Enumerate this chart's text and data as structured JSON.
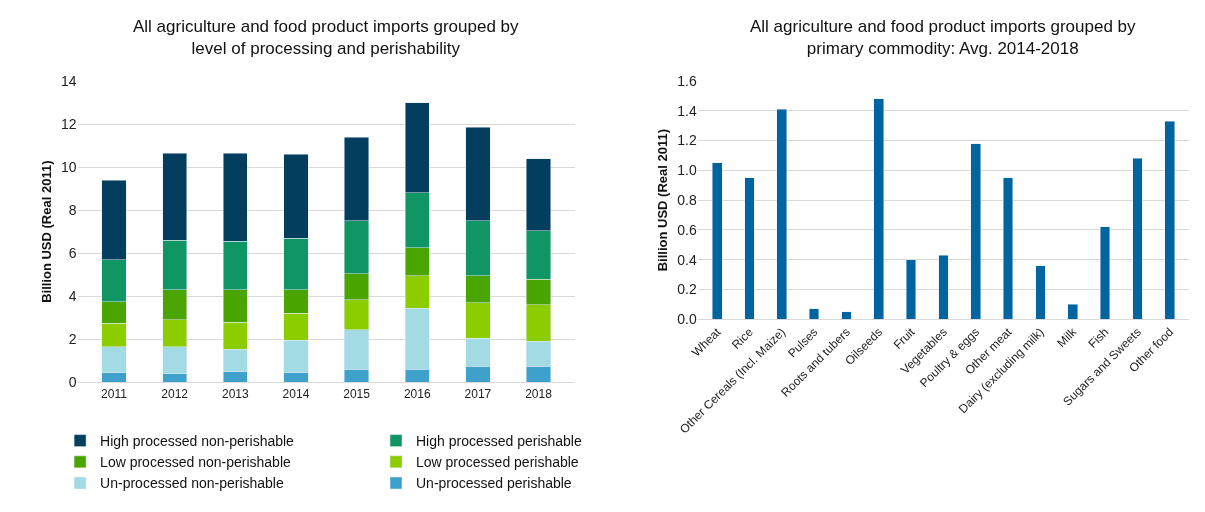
{
  "chart_data": [
    {
      "type": "bar",
      "title": "All agriculture and food product imports grouped by level of processing and perishability",
      "ylabel": "Billion USD (Real 2011)",
      "categories": [
        "2011",
        "2012",
        "2013",
        "2014",
        "2015",
        "2016",
        "2017",
        "2018"
      ],
      "stacked": true,
      "ylim": [
        0,
        14
      ],
      "yticks": [
        0,
        2,
        4,
        6,
        8,
        10,
        12,
        14
      ],
      "grid": "y",
      "legend": "bottom",
      "series": [
        {
          "name": "Un-processed perishable",
          "color": "#3ea1cc",
          "values": [
            0.45,
            0.4,
            0.5,
            0.45,
            0.6,
            0.6,
            0.75,
            0.75
          ]
        },
        {
          "name": "Un-processed non-perishable",
          "color": "#a2dbe3",
          "values": [
            1.2,
            1.25,
            1.05,
            1.5,
            1.85,
            2.85,
            1.3,
            1.15
          ]
        },
        {
          "name": "Low processed perishable",
          "color": "#8ccd00",
          "values": [
            1.1,
            1.25,
            1.25,
            1.25,
            1.4,
            1.5,
            1.65,
            1.7
          ]
        },
        {
          "name": "Low processed non-perishable",
          "color": "#4aa500",
          "values": [
            1.0,
            1.4,
            1.5,
            1.1,
            1.2,
            1.3,
            1.25,
            1.2
          ]
        },
        {
          "name": "High processed perishable",
          "color": "#0f9664",
          "values": [
            1.95,
            2.3,
            2.25,
            2.4,
            2.45,
            2.55,
            2.55,
            2.25
          ]
        },
        {
          "name": "High processed non-perishable",
          "color": "#033e5f",
          "values": [
            3.7,
            4.05,
            4.1,
            3.9,
            3.9,
            4.2,
            4.35,
            3.35
          ]
        }
      ]
    },
    {
      "type": "bar",
      "title": "All agriculture and food product imports grouped by primary commodity: Avg. 2014-2018",
      "ylabel": "Billion USD (Real 2011)",
      "categories": [
        "Wheat",
        "Rice",
        "Other Cereals (Incl. Maize)",
        "Pulses",
        "Roots and tubers",
        "Oilseeds",
        "Fruit",
        "Vegetables",
        "Poultry & eggs",
        "Other meat",
        "Dairy (excluding milk)",
        "Milk",
        "Fish",
        "Sugars and Sweets",
        "Other food"
      ],
      "values": [
        1.05,
        0.95,
        1.41,
        0.07,
        0.05,
        1.48,
        0.4,
        0.43,
        1.18,
        0.95,
        0.36,
        0.1,
        0.62,
        1.08,
        1.33
      ],
      "color": "#0064a0",
      "ylim": [
        0,
        1.6
      ],
      "yticks": [
        {
          "value": 0,
          "label": "0.0"
        },
        {
          "value": 0.2,
          "label": "0.2"
        },
        {
          "value": 0.4,
          "label": "0.4"
        },
        {
          "value": 0.6,
          "label": "0.6"
        },
        {
          "value": 0.8,
          "label": "0.8"
        },
        {
          "value": 1,
          "label": "1.0"
        },
        {
          "value": 1.2,
          "label": "1.2"
        },
        {
          "value": 1.4,
          "label": "1.4"
        },
        {
          "value": 1.6,
          "label": "1.6"
        }
      ],
      "grid": "y"
    }
  ]
}
